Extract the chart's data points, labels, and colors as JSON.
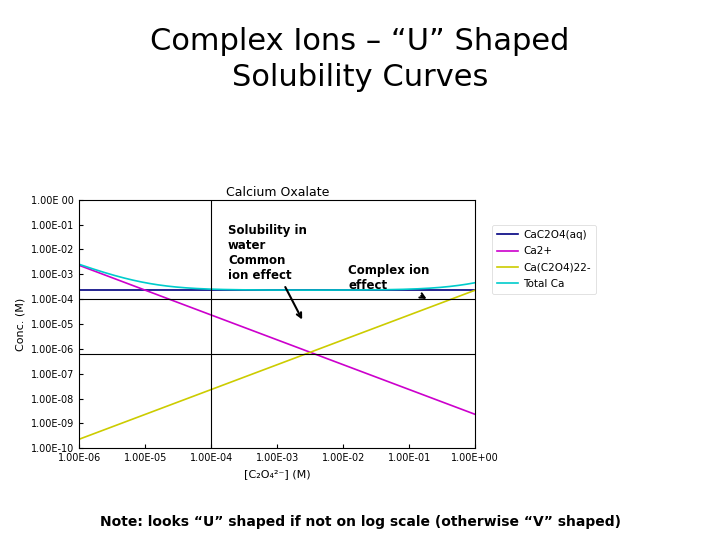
{
  "title": "Complex Ions – “U” Shaped\nSolubility Curves",
  "chart_title": "Calcium Oxalate",
  "xlabel": "[C₂O₄²⁻] (M)",
  "ylabel": "Conc. (M)",
  "note": "Note: looks “U” shaped if not on log scale (otherwise “V” shaped)",
  "xmin_exp": -6,
  "xmax_exp": 0,
  "ymin_exp": -10,
  "ymax_exp": 0,
  "Ksp": 2.3e-09,
  "Kf": 100000.0,
  "cac2o4_aq_val": 0.00023,
  "legend_labels": [
    "CaC2O4(aq)",
    "Ca2+",
    "Ca(C2O4)22-",
    "Total Ca"
  ],
  "color_cac2o4": "#000080",
  "color_ca2": "#CC00CC",
  "color_complex": "#CCCC00",
  "color_total": "#00CCCC",
  "hline1_y": 0.0001,
  "hline2_y": 6e-07,
  "vline_x": 0.0001,
  "background": "#FFFFFF",
  "title_fontsize": 22,
  "chart_title_fontsize": 9,
  "axis_label_fontsize": 8,
  "tick_fontsize": 7,
  "legend_fontsize": 7.5,
  "note_fontsize": 10,
  "annot_fontsize": 8.5,
  "xticks": [
    -6,
    -5,
    -4,
    -3,
    -2,
    -1,
    0
  ],
  "yticks": [
    -10,
    -9,
    -8,
    -7,
    -6,
    -5,
    -4,
    -3,
    -2,
    -1,
    0
  ]
}
